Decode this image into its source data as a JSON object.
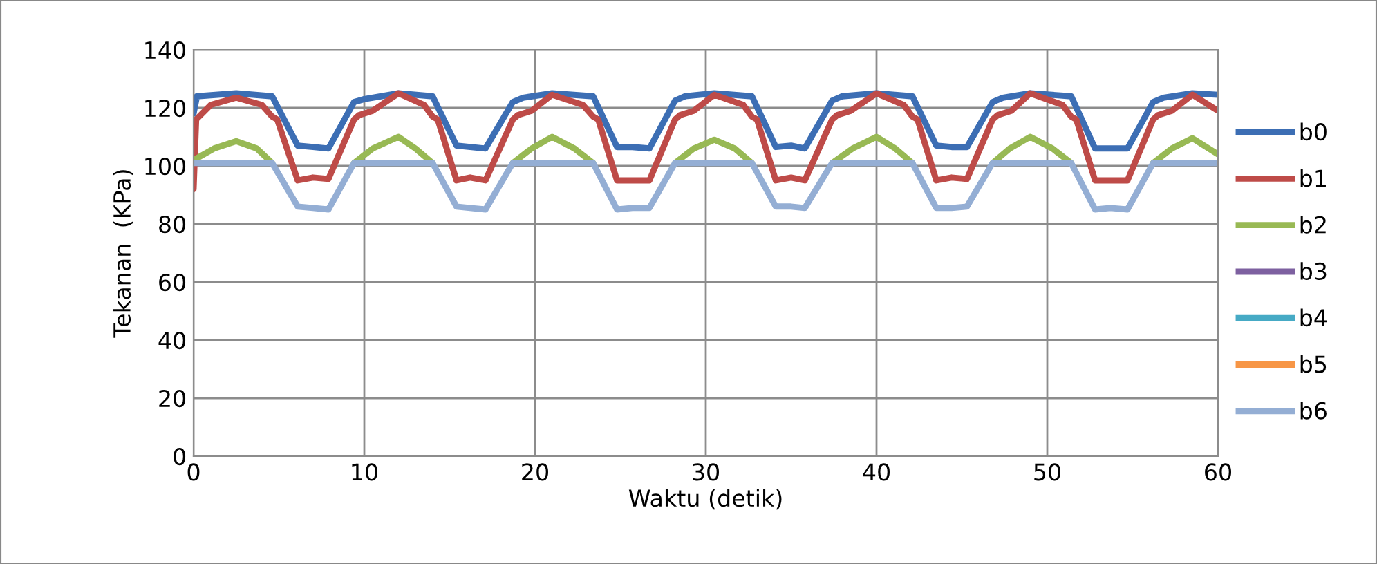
{
  "chart_data": {
    "type": "line",
    "xlabel": "Waktu (detik)",
    "ylabel": "Tekanan  (KPa)",
    "xlim": [
      0,
      60
    ],
    "xticks": [
      0,
      10,
      20,
      30,
      40,
      50,
      60
    ],
    "ylim": [
      0,
      140
    ],
    "yticks": [
      0,
      20,
      40,
      60,
      80,
      100,
      120,
      140
    ],
    "grid": true,
    "legend": "right",
    "marker": "none",
    "line_style": "solid",
    "series": [
      {
        "name": "b0",
        "color": "#3c6eb4",
        "x": [
          0,
          0.2,
          2.5,
          4.6,
          6.1,
          7,
          7.9,
          9.4,
          10,
          12,
          14,
          15.4,
          16.2,
          17.1,
          18.7,
          19.3,
          21,
          23.4,
          24.8,
          25.7,
          26.7,
          28.2,
          28.8,
          30.5,
          32.7,
          34.1,
          35,
          35.8,
          37.4,
          38,
          40,
          42.1,
          43.5,
          44.4,
          45.3,
          46.8,
          47.4,
          49,
          51.4,
          52.8,
          53.7,
          54.7,
          56.2,
          56.8,
          58.5,
          60
        ],
        "values": [
          118,
          124,
          125,
          124,
          107,
          106.5,
          106,
          122,
          123,
          125,
          124,
          107,
          106.5,
          106,
          122,
          123.5,
          125,
          124,
          106.5,
          106.5,
          106,
          122.5,
          124,
          125,
          124,
          106.5,
          107,
          106,
          122.5,
          124,
          125,
          124,
          107,
          106.5,
          106.5,
          122,
          123.5,
          125,
          124,
          106,
          106,
          106,
          122,
          123.5,
          125,
          124.5
        ]
      },
      {
        "name": "b1",
        "color": "#be4b48",
        "x": [
          0,
          0.15,
          1,
          2.5,
          4,
          4.6,
          4.9,
          6.1,
          7,
          7.9,
          9.4,
          9.7,
          10.5,
          12,
          13.5,
          14,
          14.3,
          15.4,
          16.2,
          17.1,
          18.7,
          19,
          19.8,
          21,
          22.8,
          23.4,
          23.7,
          24.8,
          25.7,
          26.7,
          28.2,
          28.5,
          29.3,
          30.5,
          32.2,
          32.7,
          33,
          34.1,
          35,
          35.8,
          37.4,
          37.7,
          38.5,
          40,
          41.6,
          42.1,
          42.4,
          43.5,
          44.4,
          45.3,
          46.8,
          47.1,
          47.9,
          49,
          50.9,
          51.4,
          51.7,
          52.8,
          53.7,
          54.7,
          56.2,
          56.5,
          57.3,
          58.5,
          60
        ],
        "values": [
          92,
          116,
          121,
          123.5,
          121,
          117,
          116,
          95,
          96,
          95.5,
          116,
          117.5,
          119,
          125,
          121,
          117,
          116,
          95,
          96,
          95,
          116,
          117.5,
          119,
          124.5,
          121,
          117,
          116,
          95,
          95,
          95,
          116,
          117.5,
          119,
          124.5,
          121,
          117,
          116,
          95,
          96,
          95,
          116,
          117.5,
          119,
          125,
          121,
          117,
          116,
          95,
          96,
          95.5,
          116,
          117.5,
          119,
          125,
          121,
          117,
          116,
          95,
          95,
          95,
          116,
          117.5,
          119,
          124.5,
          119
        ]
      },
      {
        "name": "b2",
        "color": "#98b954",
        "x": [
          0,
          1.2,
          2.5,
          3.7,
          4.6,
          7,
          9.4,
          10.5,
          12,
          13,
          14,
          16,
          18.7,
          19.8,
          21,
          22.3,
          23.4,
          25.7,
          28.2,
          29.3,
          30.5,
          31.7,
          32.7,
          35,
          37.4,
          38.6,
          40,
          41.1,
          42.1,
          44.4,
          46.8,
          47.8,
          49,
          50.3,
          51.4,
          53.7,
          56.2,
          57.3,
          58.5,
          60
        ],
        "values": [
          102,
          106,
          108.5,
          106,
          101,
          null,
          101,
          106,
          110,
          106,
          101,
          null,
          101,
          106,
          110,
          106,
          101,
          null,
          101,
          106,
          109,
          106,
          101,
          null,
          101,
          106,
          110,
          106,
          101,
          null,
          101,
          106,
          110,
          106,
          101,
          null,
          101,
          106,
          109.5,
          104
        ]
      },
      {
        "name": "b3",
        "color": "#7d60a0"
      },
      {
        "name": "b4",
        "color": "#46aac5"
      },
      {
        "name": "b5",
        "color": "#f79646"
      },
      {
        "name": "b6",
        "color": "#94aed4",
        "x": [
          0,
          4.6,
          6.1,
          7,
          7.9,
          9.4,
          14,
          15.4,
          16.2,
          17.1,
          18.7,
          23.4,
          24.8,
          25.7,
          26.7,
          28.2,
          32.7,
          34.1,
          35,
          35.8,
          37.4,
          42.1,
          43.5,
          44.4,
          45.3,
          46.8,
          51.4,
          52.8,
          53.7,
          54.7,
          56.2,
          60
        ],
        "values": [
          101,
          101,
          86,
          85.5,
          85,
          101,
          101,
          86,
          85.5,
          85,
          101,
          101,
          85,
          85.5,
          85.5,
          101,
          101,
          86,
          86,
          85.5,
          101,
          101,
          85.5,
          85.5,
          86,
          101,
          101,
          85,
          85.5,
          85,
          101,
          101
        ]
      }
    ]
  }
}
